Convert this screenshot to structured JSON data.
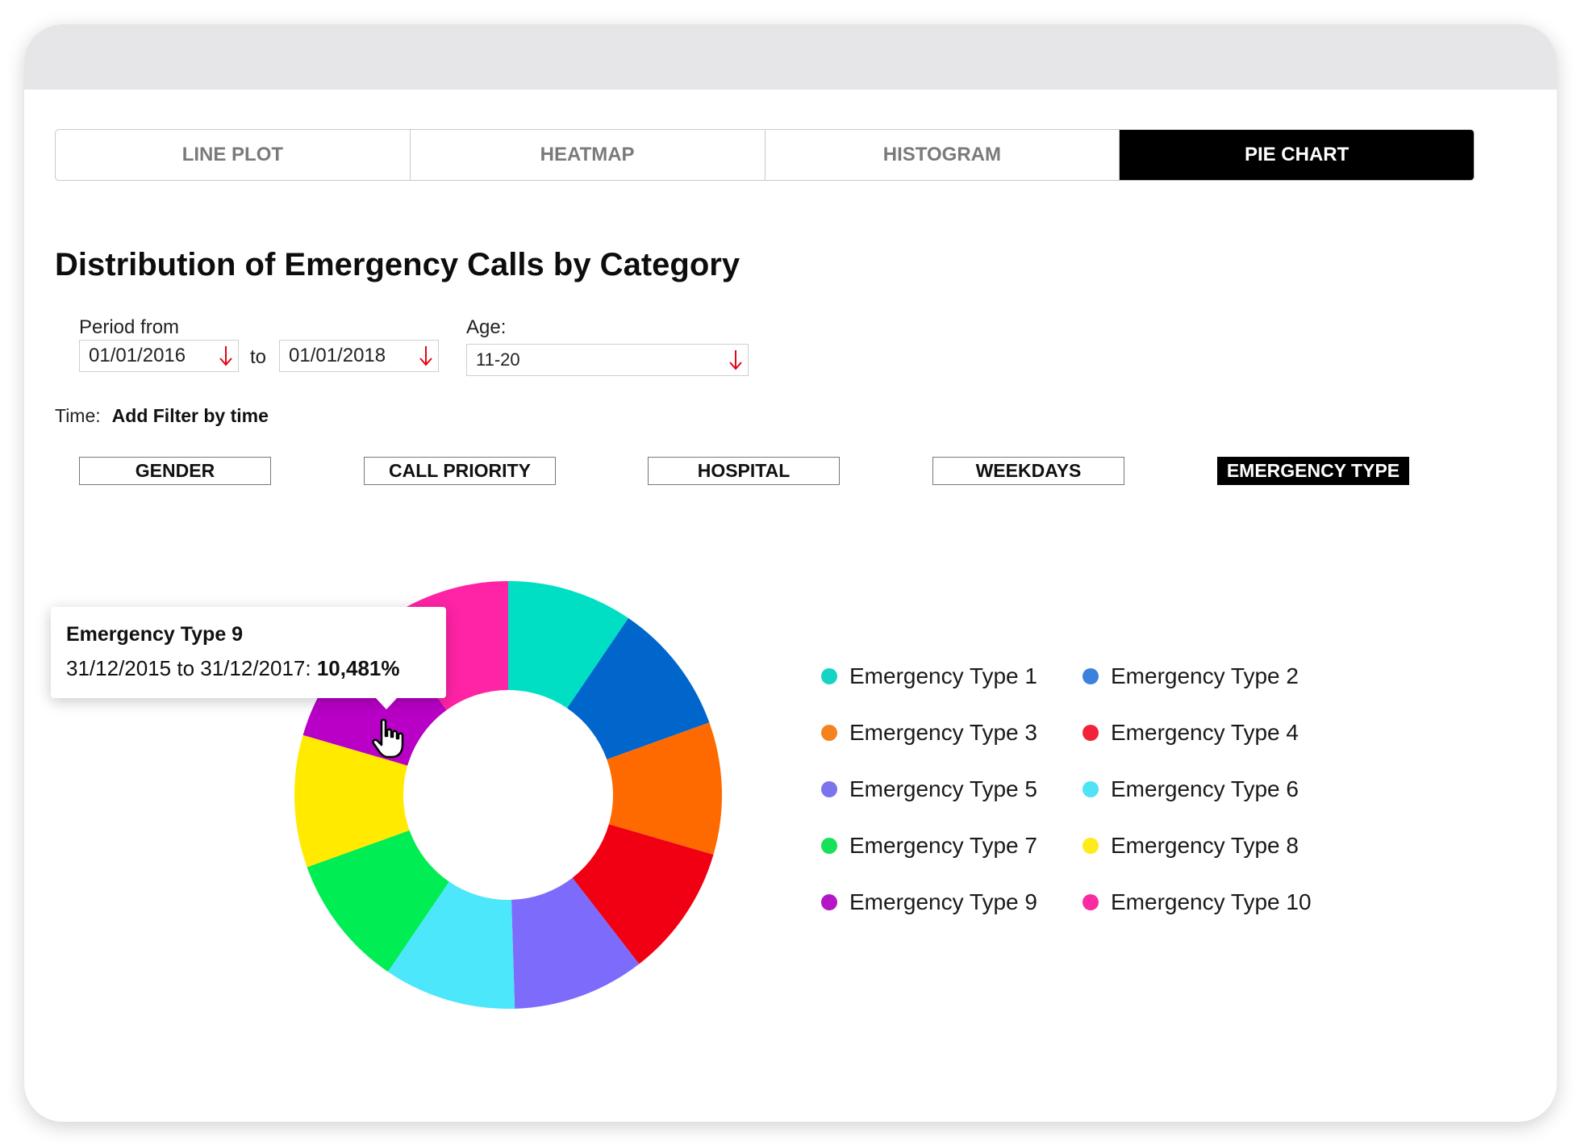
{
  "tabs": [
    {
      "label": "LINE PLOT",
      "active": false
    },
    {
      "label": "HEATMAP",
      "active": false
    },
    {
      "label": "HISTOGRAM",
      "active": false
    },
    {
      "label": "PIE CHART",
      "active": true
    }
  ],
  "filters": {
    "period_label": "Period from",
    "date_from": "01/01/2016",
    "to_label": "to",
    "date_to": "01/01/2018",
    "age_label": "Age:",
    "age_value": "11-20",
    "time_label": "Time:",
    "time_action": "Add Filter by time"
  },
  "categories": [
    {
      "label": "GENDER",
      "active": false
    },
    {
      "label": "CALL PRIORITY",
      "active": false
    },
    {
      "label": "HOSPITAL",
      "active": false
    },
    {
      "label": "WEEKDAYS",
      "active": false
    },
    {
      "label": "EMERGENCY TYPE",
      "active": true
    }
  ],
  "tooltip": {
    "title": "Emergency Type 9",
    "range": "31/12/2015 to 31/12/2017:",
    "value": "10,481%"
  },
  "colors": {
    "accent": "#e30613",
    "tab_active_bg": "#000000"
  },
  "icons": {
    "dropdown": "arrow-down-icon",
    "cursor": "hand-pointer-icon"
  },
  "chart_data": {
    "type": "pie",
    "style": "donut",
    "title": "Distribution of Emergency Calls by Category",
    "labels": [
      "Emergency Type 1",
      "Emergency Type 2",
      "Emergency Type 3",
      "Emergency Type 4",
      "Emergency Type 5",
      "Emergency Type 6",
      "Emergency Type 7",
      "Emergency Type 8",
      "Emergency Type 9",
      "Emergency Type 10"
    ],
    "values": [
      9.5,
      10.0,
      10.0,
      10.0,
      10.0,
      10.0,
      10.0,
      10.0,
      10.481,
      10.0
    ],
    "colors": [
      "#00dfc4",
      "#0066cc",
      "#ff6a00",
      "#f00012",
      "#7d6cfb",
      "#4ce7fb",
      "#00ed53",
      "#ffea00",
      "#b800c6",
      "#ff23a6"
    ],
    "legend_dot_colors": [
      "#17d3c4",
      "#3b82de",
      "#f5821f",
      "#f0233a",
      "#7b74ec",
      "#4fe3f5",
      "#17e05a",
      "#ffea1a",
      "#b615c6",
      "#fa2ca0"
    ],
    "legend_position": "right"
  }
}
